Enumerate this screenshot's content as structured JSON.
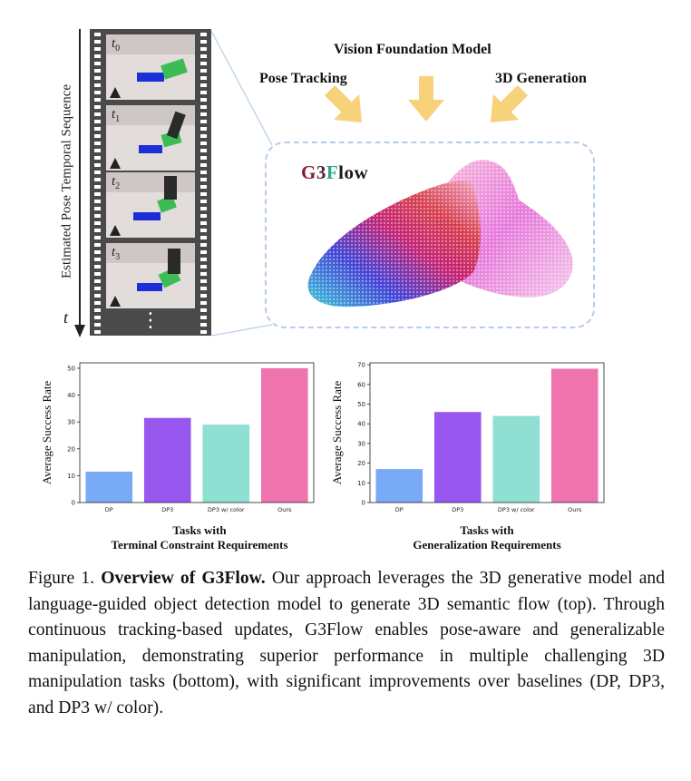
{
  "figure": {
    "vertical_axis_label": "Estimated Pose Temporal Sequence",
    "time_symbol": "t",
    "frames": [
      {
        "label": "t",
        "sub": "0"
      },
      {
        "label": "t",
        "sub": "1"
      },
      {
        "label": "t",
        "sub": "2"
      },
      {
        "label": "t",
        "sub": "3"
      }
    ],
    "ellipsis": "⋮",
    "vision_foundation_model": "Vision Foundation Model",
    "pose_tracking": "Pose Tracking",
    "generation_3d": "3D Generation",
    "brand": {
      "part1": "G",
      "part2": "3",
      "part3": "F",
      "part4": "low"
    },
    "colors": {
      "arrow": "#f7d27a",
      "dash": "#b6cde6",
      "film": "#4a4a4a",
      "brand_g": "#8b1a2e",
      "brand_3": "#5a1f35",
      "brand_f": "#2aa889",
      "brand_low": "#1a1a1a"
    }
  },
  "chart_data": [
    {
      "type": "bar",
      "categories": [
        "DP",
        "DP3",
        "DP3 w/ color",
        "Ours"
      ],
      "values": [
        11.5,
        31.5,
        29,
        50
      ],
      "colors": [
        "#78aaf5",
        "#9857ee",
        "#8fdfd3",
        "#ef74ae"
      ],
      "ylabel": "Average Success Rate",
      "xlabel": [
        "Tasks with",
        "Terminal Constraint Requirements"
      ],
      "ylim": [
        0,
        52
      ],
      "yticks": [
        0,
        10,
        20,
        30,
        40,
        50
      ]
    },
    {
      "type": "bar",
      "categories": [
        "DP",
        "DP3",
        "DP3 w/ color",
        "Ours"
      ],
      "values": [
        17,
        46,
        44,
        68
      ],
      "colors": [
        "#78aaf5",
        "#9857ee",
        "#8fdfd3",
        "#ef74ae"
      ],
      "ylabel": "Average Success Rate",
      "xlabel": [
        "Tasks with",
        "Generalization Requirements"
      ],
      "ylim": [
        0,
        71
      ],
      "yticks": [
        0,
        10,
        20,
        30,
        40,
        50,
        60,
        70
      ]
    }
  ],
  "caption": {
    "label": "Figure 1.",
    "title": "Overview of G3Flow.",
    "text": "Our approach leverages the 3D generative model and language-guided object detection model to generate 3D semantic flow (top). Through continuous tracking-based updates, G3Flow enables pose-aware and generalizable manipulation, demonstrating superior performance in multiple challenging 3D manipulation tasks (bottom), with significant improvements over baselines (DP, DP3, and DP3 w/ color)."
  }
}
